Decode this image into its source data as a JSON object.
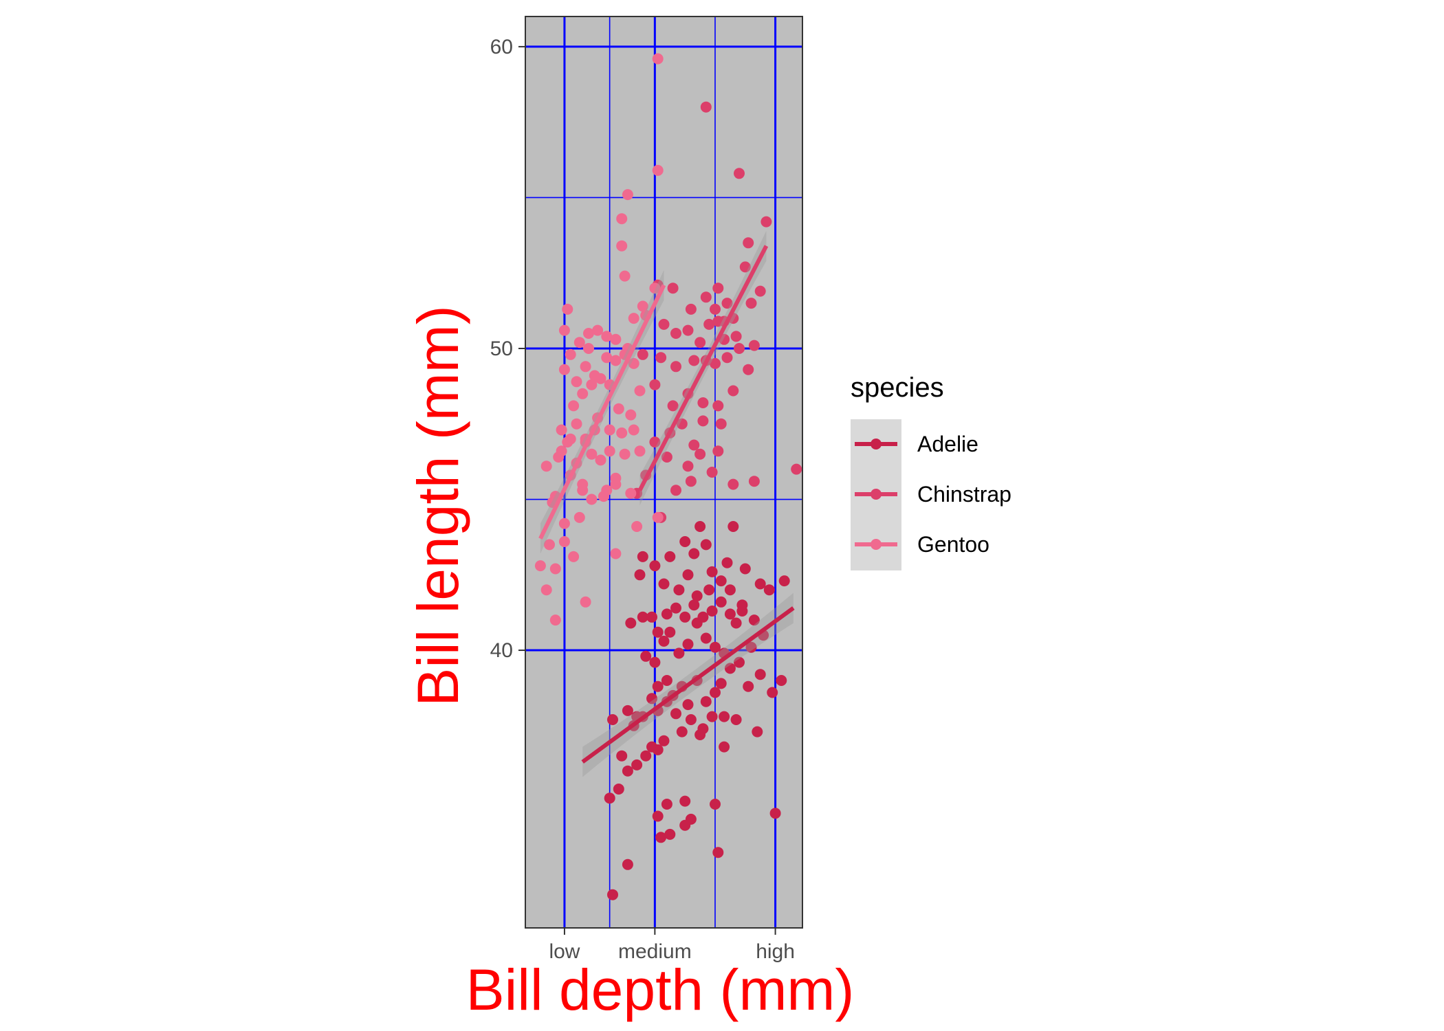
{
  "chart_data": {
    "type": "scatter",
    "title": "",
    "xlabel": "Bill depth (mm)",
    "ylabel": "Bill length (mm)",
    "x_ticks": [
      {
        "label": "low",
        "value": 13.9
      },
      {
        "label": "medium",
        "value": 16.9
      },
      {
        "label": "high",
        "value": 20.9
      }
    ],
    "y_ticks": [
      40,
      50,
      60
    ],
    "xlim": [
      12.6,
      21.8
    ],
    "ylim": [
      30.8,
      61.0
    ],
    "grid": true,
    "legend": {
      "title": "species",
      "position": "right"
    },
    "series": [
      {
        "name": "Adelie",
        "color": "#c8214a",
        "fit": {
          "x": [
            14.5,
            21.5
          ],
          "y": [
            36.3,
            41.4
          ]
        },
        "points": [
          [
            15.5,
            31.9
          ],
          [
            16.0,
            32.9
          ],
          [
            15.4,
            35.1
          ],
          [
            15.7,
            35.4
          ],
          [
            16.0,
            36.0
          ],
          [
            16.3,
            36.2
          ],
          [
            15.8,
            36.5
          ],
          [
            16.6,
            36.5
          ],
          [
            17.3,
            34.9
          ],
          [
            17.9,
            35.0
          ],
          [
            18.9,
            34.9
          ],
          [
            20.9,
            34.6
          ],
          [
            17.0,
            34.5
          ],
          [
            17.1,
            33.8
          ],
          [
            17.4,
            33.9
          ],
          [
            17.9,
            34.2
          ],
          [
            18.1,
            34.4
          ],
          [
            19.0,
            33.3
          ],
          [
            16.8,
            36.8
          ],
          [
            17.0,
            36.7
          ],
          [
            17.2,
            37.0
          ],
          [
            17.8,
            37.3
          ],
          [
            18.4,
            37.2
          ],
          [
            19.2,
            36.8
          ],
          [
            16.2,
            37.5
          ],
          [
            16.5,
            37.8
          ],
          [
            17.0,
            38.0
          ],
          [
            17.3,
            38.3
          ],
          [
            17.6,
            37.9
          ],
          [
            18.1,
            37.7
          ],
          [
            18.5,
            37.4
          ],
          [
            18.8,
            37.8
          ],
          [
            19.2,
            37.8
          ],
          [
            19.6,
            37.7
          ],
          [
            20.3,
            37.3
          ],
          [
            15.5,
            37.7
          ],
          [
            16.0,
            38.0
          ],
          [
            16.3,
            37.8
          ],
          [
            16.8,
            38.4
          ],
          [
            17.0,
            38.8
          ],
          [
            17.3,
            39.0
          ],
          [
            17.5,
            38.5
          ],
          [
            17.8,
            38.8
          ],
          [
            18.0,
            38.2
          ],
          [
            18.3,
            39.0
          ],
          [
            18.6,
            38.3
          ],
          [
            18.9,
            38.6
          ],
          [
            19.1,
            38.9
          ],
          [
            19.4,
            39.4
          ],
          [
            19.7,
            39.6
          ],
          [
            20.0,
            38.8
          ],
          [
            20.4,
            39.2
          ],
          [
            20.8,
            38.6
          ],
          [
            21.1,
            39.0
          ],
          [
            16.6,
            39.8
          ],
          [
            16.9,
            39.6
          ],
          [
            17.2,
            40.3
          ],
          [
            17.4,
            40.6
          ],
          [
            17.7,
            39.9
          ],
          [
            18.0,
            40.2
          ],
          [
            18.3,
            40.9
          ],
          [
            18.6,
            40.4
          ],
          [
            18.9,
            40.1
          ],
          [
            19.2,
            39.9
          ],
          [
            19.6,
            40.9
          ],
          [
            20.1,
            40.1
          ],
          [
            20.5,
            40.5
          ],
          [
            16.1,
            40.9
          ],
          [
            16.5,
            41.1
          ],
          [
            16.8,
            41.1
          ],
          [
            17.0,
            40.6
          ],
          [
            17.3,
            41.2
          ],
          [
            17.6,
            41.4
          ],
          [
            17.9,
            41.1
          ],
          [
            18.2,
            41.5
          ],
          [
            18.5,
            41.1
          ],
          [
            18.8,
            41.3
          ],
          [
            19.1,
            41.6
          ],
          [
            19.4,
            41.2
          ],
          [
            19.8,
            41.3
          ],
          [
            20.2,
            41.0
          ],
          [
            17.2,
            42.2
          ],
          [
            17.7,
            42.0
          ],
          [
            18.0,
            42.5
          ],
          [
            18.3,
            41.8
          ],
          [
            18.7,
            42.0
          ],
          [
            19.1,
            42.3
          ],
          [
            19.4,
            42.0
          ],
          [
            19.8,
            41.5
          ],
          [
            20.4,
            42.2
          ],
          [
            21.2,
            42.3
          ],
          [
            16.4,
            42.5
          ],
          [
            16.9,
            42.8
          ],
          [
            17.4,
            43.1
          ],
          [
            18.2,
            43.2
          ],
          [
            18.8,
            42.6
          ],
          [
            19.3,
            42.9
          ],
          [
            17.9,
            43.6
          ],
          [
            18.6,
            43.5
          ],
          [
            19.9,
            42.7
          ],
          [
            18.4,
            44.1
          ],
          [
            19.5,
            44.1
          ],
          [
            16.5,
            43.1
          ],
          [
            20.7,
            42.0
          ]
        ]
      },
      {
        "name": "Chinstrap",
        "color": "#dc3f6a",
        "fit": {
          "x": [
            16.4,
            20.6
          ],
          "y": [
            45.3,
            53.4
          ]
        },
        "points": [
          [
            16.3,
            45.2
          ],
          [
            16.6,
            45.8
          ],
          [
            17.1,
            44.4
          ],
          [
            17.3,
            46.4
          ],
          [
            17.6,
            45.3
          ],
          [
            18.0,
            46.1
          ],
          [
            18.1,
            45.6
          ],
          [
            18.4,
            46.5
          ],
          [
            18.8,
            45.9
          ],
          [
            19.0,
            46.6
          ],
          [
            19.5,
            45.5
          ],
          [
            20.2,
            45.6
          ],
          [
            21.6,
            46.0
          ],
          [
            16.9,
            46.9
          ],
          [
            17.4,
            47.2
          ],
          [
            17.8,
            47.5
          ],
          [
            18.2,
            46.8
          ],
          [
            18.5,
            47.6
          ],
          [
            19.1,
            47.5
          ],
          [
            16.9,
            48.8
          ],
          [
            17.5,
            48.1
          ],
          [
            18.0,
            48.5
          ],
          [
            18.5,
            48.2
          ],
          [
            19.0,
            48.1
          ],
          [
            19.5,
            48.6
          ],
          [
            20.0,
            49.3
          ],
          [
            16.5,
            49.8
          ],
          [
            17.1,
            49.7
          ],
          [
            17.6,
            49.4
          ],
          [
            18.2,
            49.6
          ],
          [
            18.6,
            49.6
          ],
          [
            18.9,
            49.5
          ],
          [
            19.3,
            49.7
          ],
          [
            19.7,
            50.0
          ],
          [
            17.6,
            50.5
          ],
          [
            18.0,
            50.6
          ],
          [
            18.4,
            50.2
          ],
          [
            18.7,
            50.8
          ],
          [
            19.0,
            50.9
          ],
          [
            19.2,
            50.3
          ],
          [
            19.6,
            50.4
          ],
          [
            20.2,
            50.1
          ],
          [
            17.2,
            50.8
          ],
          [
            18.1,
            51.3
          ],
          [
            18.6,
            51.7
          ],
          [
            18.9,
            51.3
          ],
          [
            19.2,
            50.9
          ],
          [
            19.5,
            51.0
          ],
          [
            19.0,
            52.0
          ],
          [
            19.3,
            51.5
          ],
          [
            20.1,
            51.5
          ],
          [
            20.4,
            51.9
          ],
          [
            17.5,
            52.0
          ],
          [
            17.0,
            52.1
          ],
          [
            19.9,
            52.7
          ],
          [
            20.0,
            53.5
          ],
          [
            20.6,
            54.2
          ],
          [
            18.6,
            58.0
          ],
          [
            19.7,
            55.8
          ]
        ]
      },
      {
        "name": "Gentoo",
        "color": "#f06a8f",
        "fit": {
          "x": [
            13.1,
            17.2
          ],
          "y": [
            43.7,
            52.1
          ]
        },
        "points": [
          [
            13.1,
            42.8
          ],
          [
            13.4,
            43.5
          ],
          [
            13.6,
            42.7
          ],
          [
            13.9,
            43.6
          ],
          [
            14.2,
            43.1
          ],
          [
            13.3,
            42.0
          ],
          [
            14.6,
            41.6
          ],
          [
            15.6,
            43.2
          ],
          [
            14.4,
            44.4
          ],
          [
            14.8,
            45.0
          ],
          [
            15.2,
            45.1
          ],
          [
            15.6,
            45.5
          ],
          [
            16.1,
            45.2
          ],
          [
            16.4,
            46.6
          ],
          [
            14.1,
            45.8
          ],
          [
            13.6,
            45.1
          ],
          [
            13.8,
            47.3
          ],
          [
            14.3,
            47.5
          ],
          [
            14.6,
            47.0
          ],
          [
            15.0,
            47.7
          ],
          [
            15.4,
            47.3
          ],
          [
            15.8,
            47.2
          ],
          [
            16.2,
            47.3
          ],
          [
            13.3,
            46.1
          ],
          [
            13.7,
            46.4
          ],
          [
            14.0,
            46.9
          ],
          [
            14.3,
            46.2
          ],
          [
            14.5,
            45.5
          ],
          [
            14.8,
            46.5
          ],
          [
            15.1,
            46.3
          ],
          [
            15.4,
            46.6
          ],
          [
            14.2,
            48.1
          ],
          [
            14.5,
            48.5
          ],
          [
            14.8,
            48.8
          ],
          [
            15.1,
            49.0
          ],
          [
            15.4,
            48.8
          ],
          [
            15.7,
            48.0
          ],
          [
            16.1,
            47.8
          ],
          [
            16.4,
            48.6
          ],
          [
            13.9,
            49.3
          ],
          [
            14.3,
            48.9
          ],
          [
            14.6,
            49.4
          ],
          [
            14.9,
            49.1
          ],
          [
            15.3,
            49.7
          ],
          [
            15.6,
            49.6
          ],
          [
            15.9,
            49.8
          ],
          [
            16.2,
            49.5
          ],
          [
            14.1,
            49.8
          ],
          [
            14.4,
            50.2
          ],
          [
            14.7,
            50.0
          ],
          [
            15.0,
            50.6
          ],
          [
            15.3,
            50.4
          ],
          [
            15.6,
            50.3
          ],
          [
            16.0,
            50.0
          ],
          [
            13.9,
            50.6
          ],
          [
            14.0,
            51.3
          ],
          [
            14.7,
            50.5
          ],
          [
            16.5,
            51.4
          ],
          [
            16.6,
            51.1
          ],
          [
            16.2,
            51.0
          ],
          [
            15.9,
            52.4
          ],
          [
            16.9,
            52.0
          ],
          [
            15.8,
            53.4
          ],
          [
            15.8,
            54.3
          ],
          [
            16.0,
            55.1
          ],
          [
            14.1,
            47.0
          ],
          [
            13.8,
            46.6
          ],
          [
            14.6,
            46.9
          ],
          [
            14.9,
            47.3
          ],
          [
            13.5,
            44.9
          ],
          [
            13.9,
            44.2
          ],
          [
            14.5,
            45.3
          ],
          [
            15.3,
            45.3
          ],
          [
            15.6,
            45.7
          ],
          [
            15.9,
            46.5
          ],
          [
            16.3,
            44.1
          ],
          [
            13.6,
            41.0
          ],
          [
            17.0,
            44.4
          ],
          [
            17.0,
            59.6
          ],
          [
            17.0,
            55.9
          ]
        ]
      }
    ]
  }
}
